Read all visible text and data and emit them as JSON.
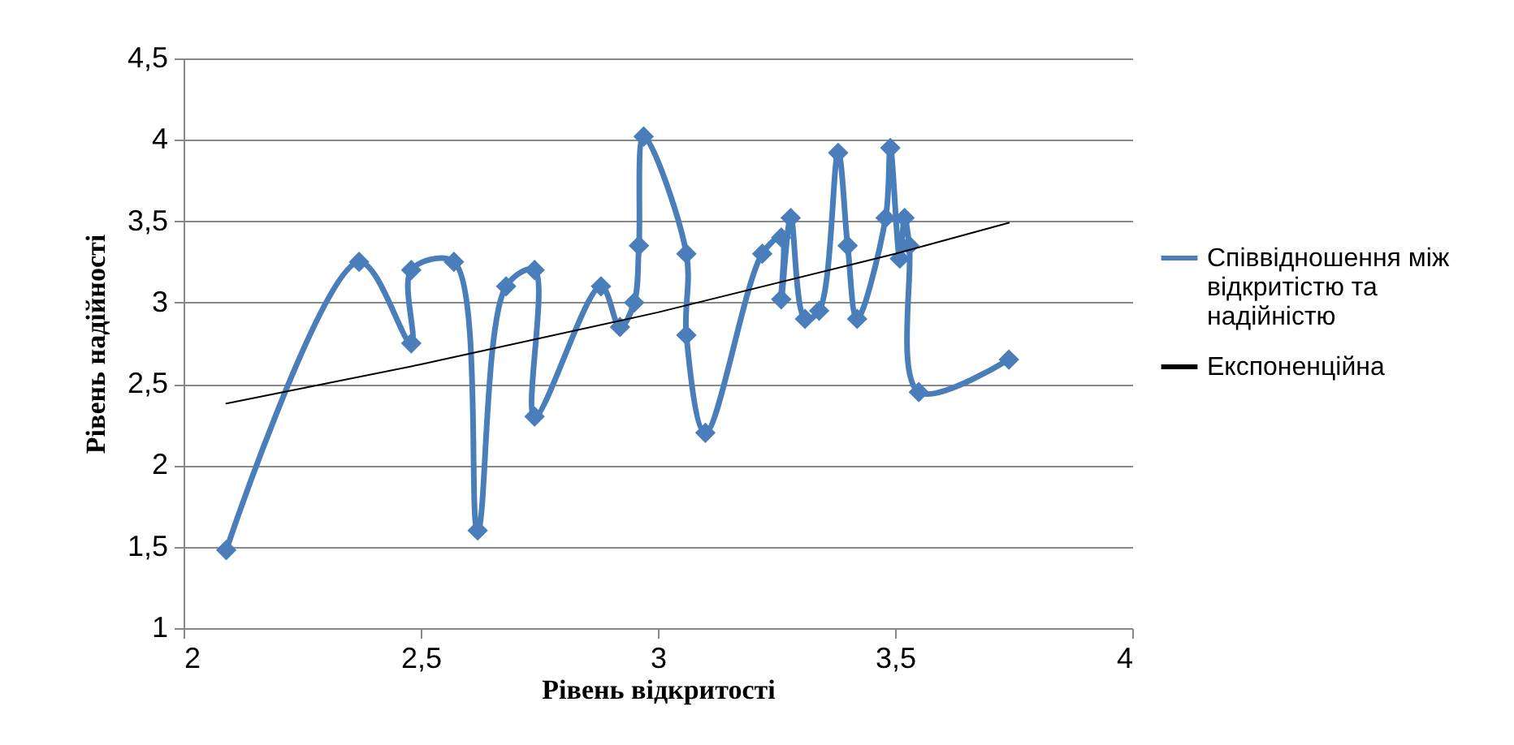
{
  "chart_data": {
    "type": "line",
    "xlabel": "Рівень відкритості",
    "ylabel": "Рівень надійності",
    "xlim": [
      2,
      4
    ],
    "xticks": [
      2,
      {
        "value": 2.5,
        "label": "2,5"
      },
      3,
      {
        "value": 3.5,
        "label": "3,5"
      },
      4
    ],
    "ylim": [
      1,
      4.5
    ],
    "yticks": [
      1,
      {
        "value": 1.5,
        "label": "1,5"
      },
      2,
      {
        "value": 2.5,
        "label": "2,5"
      },
      3,
      {
        "value": 3.5,
        "label": "3,5"
      },
      4,
      {
        "value": 4.5,
        "label": "4,5"
      }
    ],
    "grid": "y",
    "legend": "right",
    "marker": "diamond",
    "series": [
      {
        "name": "Співвідношення між відкритістю та надійністю",
        "color": "#4a7ebb",
        "x": [
          2.09,
          2.37,
          2.48,
          2.48,
          2.57,
          2.62,
          2.68,
          2.74,
          2.74,
          2.88,
          2.92,
          2.95,
          2.96,
          2.97,
          3.06,
          3.06,
          3.1,
          3.22,
          3.26,
          3.26,
          3.28,
          3.31,
          3.34,
          3.38,
          3.4,
          3.42,
          3.48,
          3.49,
          3.51,
          3.52,
          3.53,
          3.55,
          3.74
        ],
        "values": [
          1.48,
          3.25,
          2.75,
          3.2,
          3.25,
          1.6,
          3.1,
          3.2,
          2.3,
          3.1,
          2.85,
          3.0,
          3.35,
          4.02,
          3.3,
          2.8,
          2.2,
          3.3,
          3.4,
          3.02,
          3.52,
          2.9,
          2.95,
          3.92,
          3.35,
          2.9,
          3.52,
          3.95,
          3.27,
          3.52,
          3.35,
          2.45,
          2.65
        ]
      },
      {
        "name": "Експоненційна",
        "type": "line",
        "color": "#000000",
        "marker": "none",
        "x": [
          2.09,
          2.5,
          3,
          3.5,
          3.74
        ],
        "values": [
          2.38,
          2.62,
          2.94,
          3.3,
          3.49
        ]
      }
    ]
  }
}
